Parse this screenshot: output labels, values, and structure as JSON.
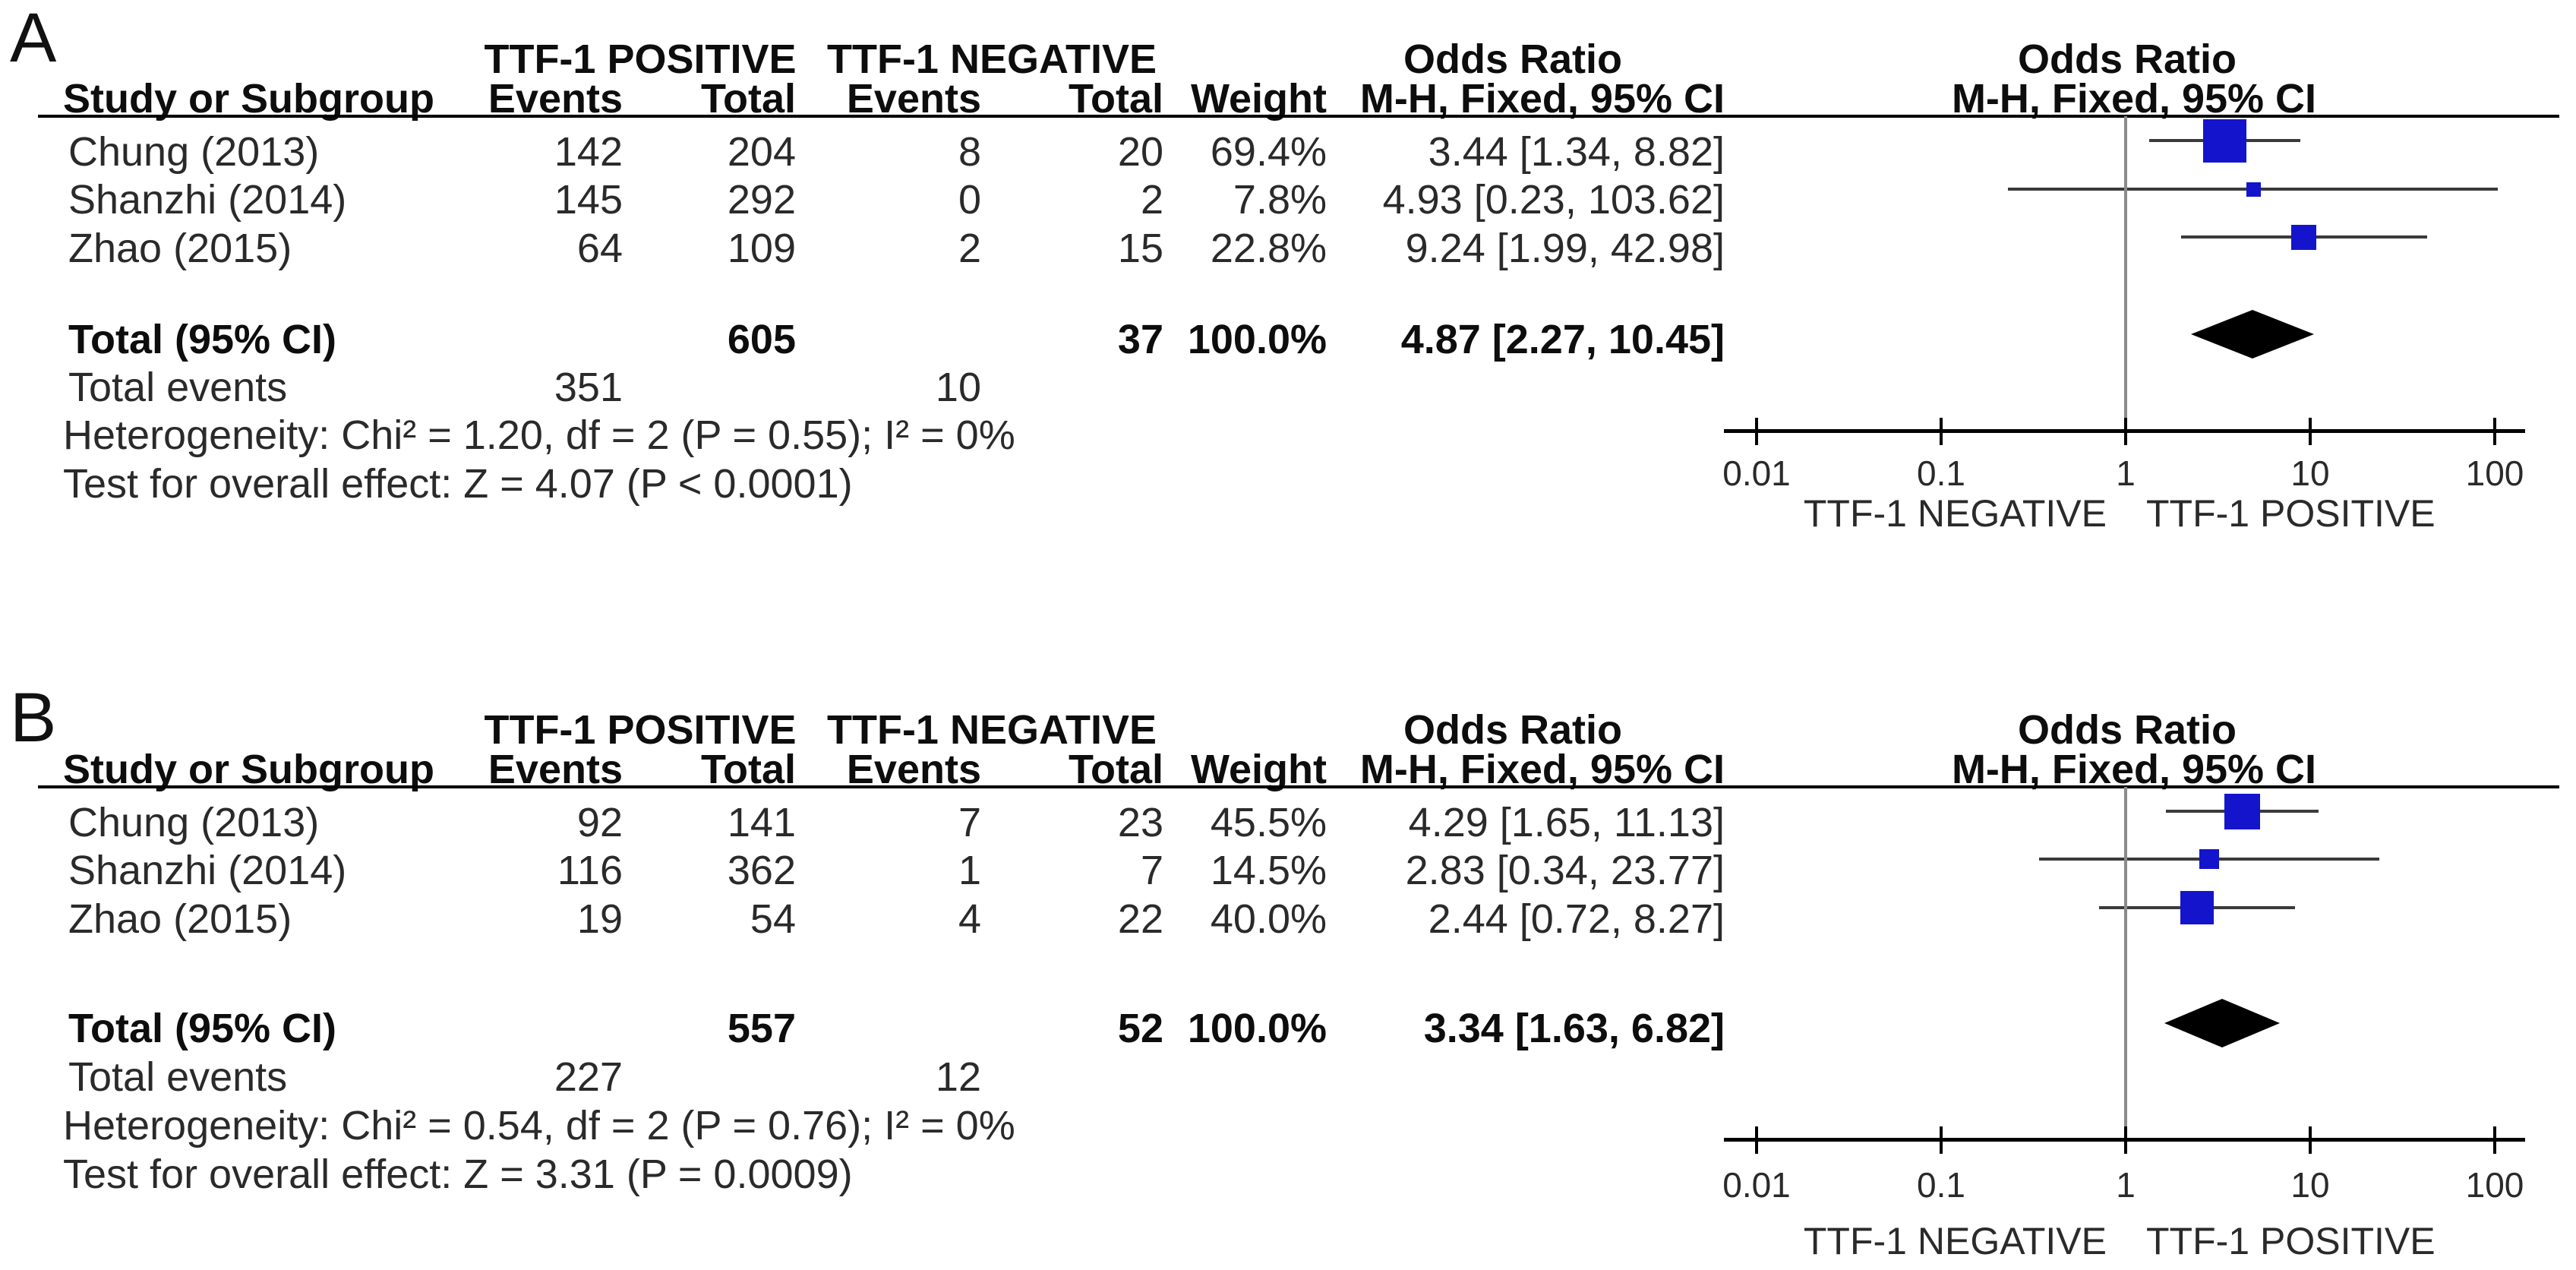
{
  "figure": {
    "description": "Forest plot meta-analysis, two panels",
    "colors": {
      "square": "#1414cc",
      "diamond": "#000000",
      "ci_line": "#3a3a3a",
      "axis_line": "#000000",
      "ref_line": "#8a8a8a",
      "rule_line": "#000000",
      "text": "#2a2a2a"
    }
  },
  "chart_data": {
    "type": "forest",
    "scale": "log10",
    "panels": [
      {
        "label": "A",
        "group_headers": {
          "pos": "TTF-1 POSITIVE",
          "neg": "TTF-1 NEGATIVE",
          "or": "Odds Ratio",
          "plot_or": "Odds Ratio"
        },
        "columns": {
          "study": "Study or Subgroup",
          "events": "Events",
          "total": "Total",
          "events2": "Events",
          "total2": "Total",
          "weight": "Weight",
          "mh": "M-H, Fixed, 95% CI",
          "plot_mh": "M-H, Fixed, 95% CI"
        },
        "studies": [
          {
            "name": "Chung (2013)",
            "events_pos": "142",
            "total_pos": "204",
            "events_neg": "8",
            "total_neg": "20",
            "weight": "69.4%",
            "weight_num": 69.4,
            "or_text": "3.44 [1.34, 8.82]",
            "or": 3.44,
            "ci_low": 1.34,
            "ci_high": 8.82
          },
          {
            "name": "Shanzhi (2014)",
            "events_pos": "145",
            "total_pos": "292",
            "events_neg": "0",
            "total_neg": "2",
            "weight": "7.8%",
            "weight_num": 7.8,
            "or_text": "4.93 [0.23, 103.62]",
            "or": 4.93,
            "ci_low": 0.23,
            "ci_high": 103.62
          },
          {
            "name": "Zhao (2015)",
            "events_pos": "64",
            "total_pos": "109",
            "events_neg": "2",
            "total_neg": "15",
            "weight": "22.8%",
            "weight_num": 22.8,
            "or_text": "9.24 [1.99, 42.98]",
            "or": 9.24,
            "ci_low": 1.99,
            "ci_high": 42.98
          }
        ],
        "total": {
          "label": "Total (95% CI)",
          "total_pos": "605",
          "total_neg": "37",
          "weight": "100.0%",
          "or_text": "4.87 [2.27, 10.45]",
          "or": 4.87,
          "ci_low": 2.27,
          "ci_high": 10.45
        },
        "total_events": {
          "label": "Total events",
          "pos": "351",
          "neg": "10"
        },
        "heterogeneity": "Heterogeneity: Chi² = 1.20, df = 2 (P = 0.55); I² = 0%",
        "overall_test": "Test for overall effect: Z = 4.07 (P < 0.0001)",
        "axis": {
          "ticks": [
            "0.01",
            "0.1",
            "1",
            "10",
            "100"
          ],
          "xlim": [
            0.005,
            200
          ],
          "caption_left": "TTF-1 NEGATIVE",
          "caption_right": "TTF-1 POSITIVE"
        }
      },
      {
        "label": "B",
        "group_headers": {
          "pos": "TTF-1 POSITIVE",
          "neg": "TTF-1 NEGATIVE",
          "or": "Odds Ratio",
          "plot_or": "Odds Ratio"
        },
        "columns": {
          "study": "Study or Subgroup",
          "events": "Events",
          "total": "Total",
          "events2": "Events",
          "total2": "Total",
          "weight": "Weight",
          "mh": "M-H, Fixed, 95% CI",
          "plot_mh": "M-H, Fixed, 95% CI"
        },
        "studies": [
          {
            "name": "Chung (2013)",
            "events_pos": "92",
            "total_pos": "141",
            "events_neg": "7",
            "total_neg": "23",
            "weight": "45.5%",
            "weight_num": 45.5,
            "or_text": "4.29 [1.65, 11.13]",
            "or": 4.29,
            "ci_low": 1.65,
            "ci_high": 11.13
          },
          {
            "name": "Shanzhi (2014)",
            "events_pos": "116",
            "total_pos": "362",
            "events_neg": "1",
            "total_neg": "7",
            "weight": "14.5%",
            "weight_num": 14.5,
            "or_text": "2.83 [0.34, 23.77]",
            "or": 2.83,
            "ci_low": 0.34,
            "ci_high": 23.77
          },
          {
            "name": "Zhao (2015)",
            "events_pos": "19",
            "total_pos": "54",
            "events_neg": "4",
            "total_neg": "22",
            "weight": "40.0%",
            "weight_num": 40.0,
            "or_text": "2.44 [0.72, 8.27]",
            "or": 2.44,
            "ci_low": 0.72,
            "ci_high": 8.27
          }
        ],
        "total": {
          "label": "Total (95% CI)",
          "total_pos": "557",
          "total_neg": "52",
          "weight": "100.0%",
          "or_text": "3.34 [1.63, 6.82]",
          "or": 3.34,
          "ci_low": 1.63,
          "ci_high": 6.82
        },
        "total_events": {
          "label": "Total events",
          "pos": "227",
          "neg": "12"
        },
        "heterogeneity": "Heterogeneity: Chi² = 0.54, df = 2 (P = 0.76); I² = 0%",
        "overall_test": "Test for overall effect: Z = 3.31 (P = 0.0009)",
        "axis": {
          "ticks": [
            "0.01",
            "0.1",
            "1",
            "10",
            "100"
          ],
          "xlim": [
            0.005,
            200
          ],
          "caption_left": "TTF-1 NEGATIVE",
          "caption_right": "TTF-1 POSITIVE"
        }
      }
    ]
  }
}
